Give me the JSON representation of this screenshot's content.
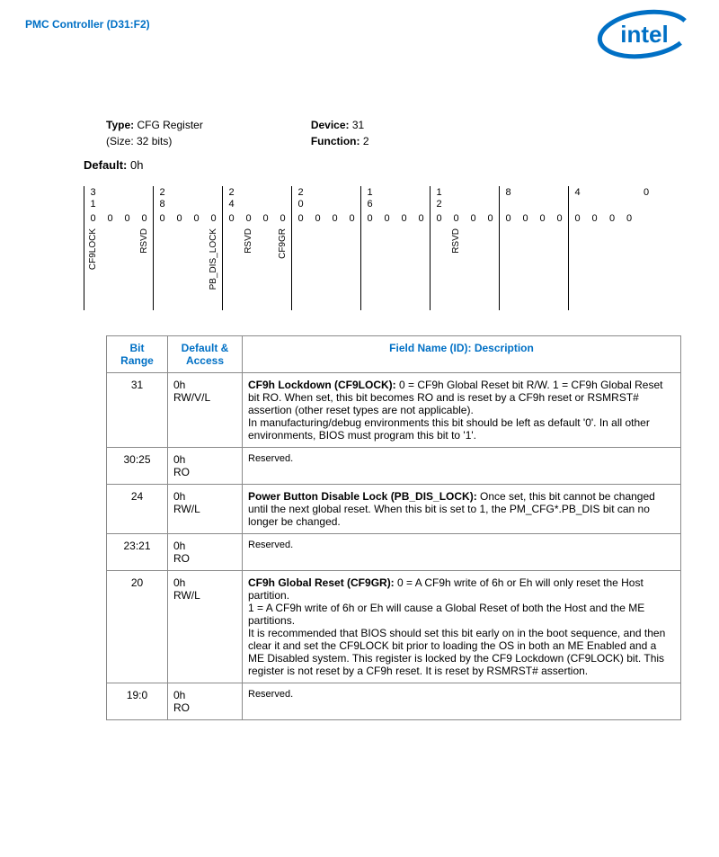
{
  "header": {
    "title": "PMC Controller (D31:F2)",
    "logo_text": "intel",
    "logo_color": "#0070c5"
  },
  "meta": {
    "type_label": "Type:",
    "type_value": "CFG Register",
    "size": "(Size: 32 bits)",
    "device_label": "Device:",
    "device_value": "31",
    "function_label": "Function:",
    "function_value": "2"
  },
  "default": {
    "label": "Default:",
    "value": "0h"
  },
  "bitmap": {
    "ticks": [
      "3\n1",
      "",
      "",
      "",
      "2\n8",
      "",
      "",
      "",
      "2\n4",
      "",
      "",
      "",
      "2\n0",
      "",
      "",
      "",
      "1\n6",
      "",
      "",
      "",
      "1\n2",
      "",
      "",
      "",
      "8",
      "",
      "",
      "",
      "4",
      "",
      "",
      "",
      "0"
    ],
    "values": [
      "0",
      "0",
      "0",
      "0",
      "0",
      "0",
      "0",
      "0",
      "0",
      "0",
      "0",
      "0",
      "0",
      "0",
      "0",
      "0",
      "0",
      "0",
      "0",
      "0",
      "0",
      "0",
      "0",
      "0",
      "0",
      "0",
      "0",
      "0",
      "0",
      "0",
      "0",
      "0"
    ],
    "labels": [
      "CF9LOCK",
      "",
      "",
      "RSVD",
      "",
      "",
      "",
      "PB_DIS_LOCK",
      "",
      "RSVD",
      "",
      "CF9GR",
      "",
      "",
      "",
      "",
      "",
      "",
      "",
      "",
      "",
      "RSVD",
      "",
      "",
      "",
      "",
      "",
      "",
      "",
      "",
      "",
      ""
    ],
    "seps": [
      0,
      4,
      8,
      12,
      16,
      20,
      24,
      28
    ]
  },
  "table": {
    "headers": {
      "range": "Bit Range",
      "access": "Default & Access",
      "desc": "Field Name (ID): Description"
    },
    "rows": [
      {
        "range": "31",
        "access": "0h\nRW/V/L",
        "title": "CF9h Lockdown (CF9LOCK):",
        "body": " 0 = CF9h Global Reset bit R/W. 1 = CF9h Global Reset bit RO. When set, this bit becomes RO and is reset by a CF9h reset or RSMRST# assertion (other reset types are not applicable).\nIn manufacturing/debug environments this bit should be left as default '0'. In all other environments, BIOS must program this bit to '1'."
      },
      {
        "range": "30:25",
        "access": "0h\nRO",
        "title": "",
        "body": "Reserved.",
        "small": true
      },
      {
        "range": "24",
        "access": "0h\nRW/L",
        "title": "Power Button Disable Lock  (PB_DIS_LOCK):",
        "body": " Once set, this bit cannot be changed until the next global reset. When this bit is set to 1, the PM_CFG*.PB_DIS bit can no longer be changed."
      },
      {
        "range": "23:21",
        "access": "0h\nRO",
        "title": "",
        "body": "Reserved.",
        "small": true
      },
      {
        "range": "20",
        "access": "0h\nRW/L",
        "title": "CF9h Global Reset (CF9GR):",
        "body": " 0 = A CF9h write of 6h or Eh will only reset the Host partition.\n1 = A CF9h write of 6h or Eh will cause a Global Reset of both the Host and the ME partitions.\nIt is recommended that BIOS should set this bit early on in the boot sequence, and then clear it and set the CF9LOCK bit prior to loading the OS in both an ME Enabled and a ME Disabled system. This register is locked by the CF9 Lockdown (CF9LOCK) bit. This register is not reset by a CF9h reset. It is reset by RSMRST# assertion."
      },
      {
        "range": "19:0",
        "access": "0h\nRO",
        "title": "",
        "body": "Reserved.",
        "small": true
      }
    ]
  }
}
